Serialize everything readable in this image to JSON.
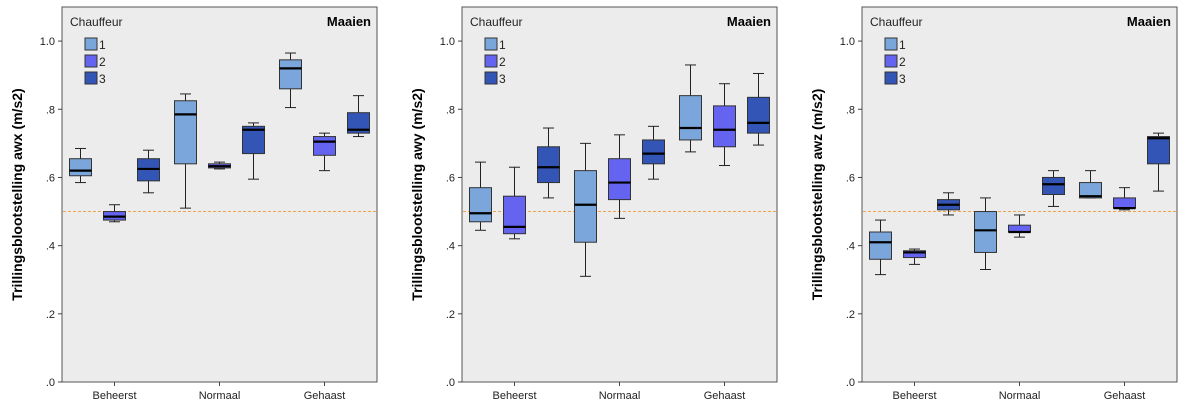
{
  "chart_data": [
    {
      "type": "boxplot",
      "annotation": "Maaien",
      "ylabel": "Trillingsblootstelling awx (m/s2)",
      "ylim": [
        0,
        1.1
      ],
      "yticks": [
        ".0",
        ".2",
        ".4",
        ".6",
        ".8",
        "1.0"
      ],
      "categories": [
        "Beheerst",
        "Normaal",
        "Gehaast"
      ],
      "legend": {
        "title": "Chauffeur",
        "placement": "top-left"
      },
      "reference_line": {
        "y": 0.5,
        "color": "#f5a04a",
        "style": "dashed"
      },
      "series": [
        {
          "name": "1",
          "color": "#7aa6db",
          "boxes": [
            {
              "min": 0.585,
              "q1": 0.605,
              "median": 0.62,
              "q3": 0.655,
              "max": 0.685
            },
            {
              "min": 0.51,
              "q1": 0.64,
              "median": 0.785,
              "q3": 0.825,
              "max": 0.845
            },
            {
              "min": 0.805,
              "q1": 0.86,
              "median": 0.92,
              "q3": 0.945,
              "max": 0.965
            }
          ]
        },
        {
          "name": "2",
          "color": "#6464f0",
          "boxes": [
            {
              "min": 0.47,
              "q1": 0.475,
              "median": 0.485,
              "q3": 0.5,
              "max": 0.52
            },
            {
              "min": 0.625,
              "q1": 0.628,
              "median": 0.633,
              "q3": 0.64,
              "max": 0.645
            },
            {
              "min": 0.62,
              "q1": 0.665,
              "median": 0.705,
              "q3": 0.72,
              "max": 0.73
            }
          ]
        },
        {
          "name": "3",
          "color": "#3355b5",
          "boxes": [
            {
              "min": 0.555,
              "q1": 0.59,
              "median": 0.625,
              "q3": 0.655,
              "max": 0.68
            },
            {
              "min": 0.595,
              "q1": 0.67,
              "median": 0.74,
              "q3": 0.75,
              "max": 0.76
            },
            {
              "min": 0.72,
              "q1": 0.73,
              "median": 0.74,
              "q3": 0.79,
              "max": 0.84
            }
          ]
        }
      ]
    },
    {
      "type": "boxplot",
      "annotation": "Maaien",
      "ylabel": "Trillingsblootstelling awy (m/s2)",
      "ylim": [
        0,
        1.1
      ],
      "yticks": [
        ".0",
        ".2",
        ".4",
        ".6",
        ".8",
        "1.0"
      ],
      "categories": [
        "Beheerst",
        "Normaal",
        "Gehaast"
      ],
      "legend": {
        "title": "Chauffeur",
        "placement": "top-left"
      },
      "reference_line": {
        "y": 0.5,
        "color": "#f5a04a",
        "style": "dashed"
      },
      "series": [
        {
          "name": "1",
          "color": "#7aa6db",
          "boxes": [
            {
              "min": 0.445,
              "q1": 0.47,
              "median": 0.495,
              "q3": 0.57,
              "max": 0.645
            },
            {
              "min": 0.31,
              "q1": 0.41,
              "median": 0.52,
              "q3": 0.62,
              "max": 0.7
            },
            {
              "min": 0.675,
              "q1": 0.71,
              "median": 0.745,
              "q3": 0.84,
              "max": 0.93
            }
          ]
        },
        {
          "name": "2",
          "color": "#6464f0",
          "boxes": [
            {
              "min": 0.42,
              "q1": 0.435,
              "median": 0.455,
              "q3": 0.545,
              "max": 0.63
            },
            {
              "min": 0.48,
              "q1": 0.535,
              "median": 0.585,
              "q3": 0.655,
              "max": 0.725
            },
            {
              "min": 0.635,
              "q1": 0.69,
              "median": 0.74,
              "q3": 0.81,
              "max": 0.875
            }
          ]
        },
        {
          "name": "3",
          "color": "#3355b5",
          "boxes": [
            {
              "min": 0.54,
              "q1": 0.585,
              "median": 0.63,
              "q3": 0.69,
              "max": 0.745
            },
            {
              "min": 0.595,
              "q1": 0.64,
              "median": 0.67,
              "q3": 0.71,
              "max": 0.75
            },
            {
              "min": 0.695,
              "q1": 0.73,
              "median": 0.76,
              "q3": 0.835,
              "max": 0.905
            }
          ]
        }
      ]
    },
    {
      "type": "boxplot",
      "annotation": "Maaien",
      "ylabel": "Trillingsblootstelling awz (m/s2)",
      "ylim": [
        0,
        1.1
      ],
      "yticks": [
        ".0",
        ".2",
        ".4",
        ".6",
        ".8",
        "1.0"
      ],
      "categories": [
        "Beheerst",
        "Normaal",
        "Gehaast"
      ],
      "legend": {
        "title": "Chauffeur",
        "placement": "top-left"
      },
      "reference_line": {
        "y": 0.5,
        "color": "#f5a04a",
        "style": "dashed"
      },
      "series": [
        {
          "name": "1",
          "color": "#7aa6db",
          "boxes": [
            {
              "min": 0.315,
              "q1": 0.36,
              "median": 0.41,
              "q3": 0.44,
              "max": 0.475
            },
            {
              "min": 0.33,
              "q1": 0.38,
              "median": 0.445,
              "q3": 0.5,
              "max": 0.54
            },
            {
              "min": 0.54,
              "q1": 0.54,
              "median": 0.545,
              "q3": 0.585,
              "max": 0.62
            }
          ]
        },
        {
          "name": "2",
          "color": "#6464f0",
          "boxes": [
            {
              "min": 0.345,
              "q1": 0.365,
              "median": 0.38,
              "q3": 0.385,
              "max": 0.39
            },
            {
              "min": 0.425,
              "q1": 0.44,
              "median": 0.44,
              "q3": 0.46,
              "max": 0.49
            },
            {
              "min": 0.505,
              "q1": 0.51,
              "median": 0.51,
              "q3": 0.54,
              "max": 0.57
            }
          ]
        },
        {
          "name": "3",
          "color": "#3355b5",
          "boxes": [
            {
              "min": 0.49,
              "q1": 0.505,
              "median": 0.52,
              "q3": 0.535,
              "max": 0.555
            },
            {
              "min": 0.515,
              "q1": 0.55,
              "median": 0.58,
              "q3": 0.6,
              "max": 0.62
            },
            {
              "min": 0.56,
              "q1": 0.64,
              "median": 0.715,
              "q3": 0.72,
              "max": 0.73
            }
          ]
        }
      ]
    }
  ]
}
